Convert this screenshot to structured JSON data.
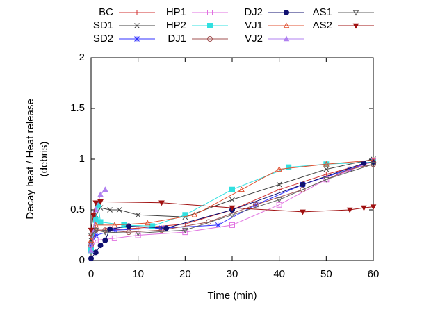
{
  "chart_data": {
    "type": "line",
    "xlabel": "Time (min)",
    "ylabel": [
      "Decay heat / Heat release",
      "(debris)"
    ],
    "xlim": [
      0,
      60
    ],
    "xticks": [
      0,
      10,
      20,
      30,
      40,
      50,
      60
    ],
    "ylim": [
      0,
      2
    ],
    "yticks": [
      0,
      0.5,
      1,
      1.5,
      2
    ],
    "legend": "top",
    "series": [
      {
        "name": "BC",
        "color": "#d03030",
        "marker": "plus",
        "x": [
          0,
          1,
          3,
          10,
          20,
          30,
          40,
          50,
          58,
          60
        ],
        "values": [
          0.25,
          0.3,
          0.3,
          0.32,
          0.36,
          0.5,
          0.7,
          0.85,
          0.95,
          0.97
        ]
      },
      {
        "name": "SD1",
        "color": "#404040",
        "marker": "cross",
        "x": [
          0,
          1,
          2,
          4,
          6,
          10,
          20,
          30,
          40,
          50,
          60
        ],
        "values": [
          0.2,
          0.45,
          0.52,
          0.5,
          0.5,
          0.45,
          0.43,
          0.6,
          0.75,
          0.9,
          1.0
        ]
      },
      {
        "name": "SD2",
        "color": "#3030ff",
        "marker": "star",
        "x": [
          0,
          1,
          5,
          15,
          27,
          35,
          45,
          55,
          60
        ],
        "values": [
          0.15,
          0.25,
          0.3,
          0.32,
          0.35,
          0.55,
          0.75,
          0.9,
          0.98
        ]
      },
      {
        "name": "HP1",
        "color": "#e070e0",
        "marker": "square",
        "x": [
          0,
          1,
          5,
          10,
          20,
          30,
          40,
          50,
          60
        ],
        "values": [
          0.1,
          0.2,
          0.22,
          0.25,
          0.28,
          0.35,
          0.55,
          0.8,
          0.98
        ]
      },
      {
        "name": "HP2",
        "color": "#30e0e0",
        "marker": "square-filled",
        "x": [
          0,
          1,
          1.5,
          2,
          7,
          13,
          20,
          30,
          42,
          50,
          60
        ],
        "values": [
          0.1,
          0.4,
          0.55,
          0.38,
          0.35,
          0.34,
          0.45,
          0.7,
          0.92,
          0.95,
          0.97
        ]
      },
      {
        "name": "DJ1",
        "color": "#a05050",
        "marker": "circle",
        "x": [
          0,
          1,
          3,
          8,
          15,
          25,
          35,
          45,
          55,
          60
        ],
        "values": [
          0.15,
          0.3,
          0.3,
          0.28,
          0.3,
          0.38,
          0.55,
          0.7,
          0.9,
          0.95
        ]
      },
      {
        "name": "DJ2",
        "color": "#101070",
        "marker": "circle-filled",
        "x": [
          0,
          1,
          2,
          3,
          4,
          8,
          16,
          30,
          45,
          58,
          60
        ],
        "values": [
          0.02,
          0.08,
          0.15,
          0.2,
          0.31,
          0.34,
          0.32,
          0.5,
          0.75,
          0.96,
          0.97
        ]
      },
      {
        "name": "VJ1",
        "color": "#e05030",
        "marker": "triangle",
        "x": [
          0,
          1,
          5,
          12,
          22,
          32,
          40,
          50,
          60
        ],
        "values": [
          0.2,
          0.35,
          0.35,
          0.37,
          0.45,
          0.7,
          0.9,
          0.95,
          0.99
        ]
      },
      {
        "name": "VJ2",
        "color": "#b080f0",
        "marker": "triangle-filled",
        "x": [
          0,
          0.5,
          1,
          2,
          3
        ],
        "values": [
          0.1,
          0.3,
          0.5,
          0.65,
          0.7
        ]
      },
      {
        "name": "AS1",
        "color": "#606060",
        "marker": "triangle-down",
        "x": [
          0,
          1,
          3,
          10,
          20,
          30,
          40,
          50,
          60
        ],
        "values": [
          0.25,
          0.3,
          0.28,
          0.27,
          0.3,
          0.45,
          0.6,
          0.8,
          0.95
        ]
      },
      {
        "name": "AS2",
        "color": "#a01010",
        "marker": "triangle-down-filled",
        "x": [
          0,
          0.5,
          1,
          2,
          15,
          30,
          45,
          55,
          58,
          60
        ],
        "values": [
          0.3,
          0.45,
          0.57,
          0.58,
          0.57,
          0.52,
          0.48,
          0.5,
          0.52,
          0.53
        ]
      }
    ]
  }
}
